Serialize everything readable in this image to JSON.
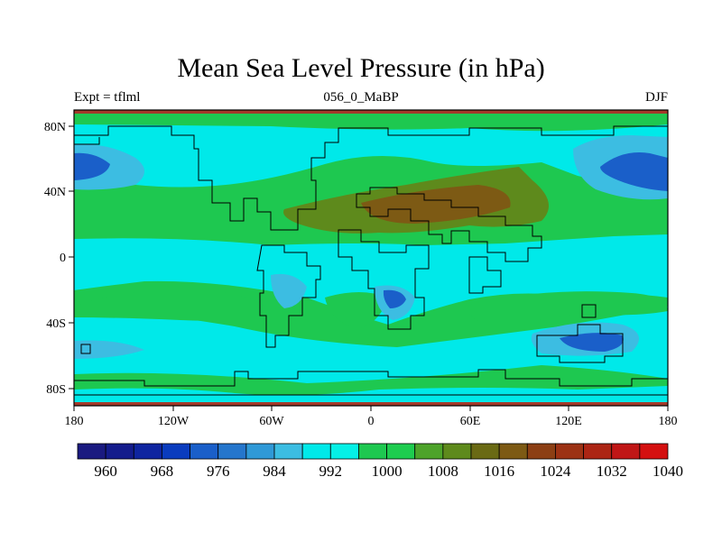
{
  "title": "Mean Sea Level Pressure (in hPa)",
  "subtitle_left": "Expt = tflml",
  "subtitle_center": "056_0_MaBP",
  "subtitle_right": "DJF",
  "x_ticks": [
    "180",
    "120W",
    "60W",
    "0",
    "60E",
    "120E",
    "180"
  ],
  "y_ticks": [
    "80N",
    "40N",
    "0",
    "40S",
    "80S"
  ],
  "colorbar": {
    "colors": [
      "#1a1a80",
      "#141c8c",
      "#0f25a0",
      "#0a3cbe",
      "#1a5fc9",
      "#2576cc",
      "#2f99d7",
      "#3cbde2",
      "#00e9e9",
      "#05f0e6",
      "#1ec850",
      "#1ecc4f",
      "#4da32a",
      "#5e8a1c",
      "#6a6a14",
      "#7d5a14",
      "#8c3f14",
      "#9c3214",
      "#ac2514",
      "#c01616",
      "#d41010"
    ],
    "labels": [
      "960",
      "968",
      "976",
      "984",
      "992",
      "1000",
      "1008",
      "1016",
      "1024",
      "1032",
      "1040"
    ]
  },
  "palette": {
    "lowest": "#1a5fc9",
    "low": "#2f99d7",
    "mid_low": "#00e9e9",
    "mid_high": "#1ec850",
    "high": "#5e8a1c",
    "higher": "#7d5a14",
    "border": "#a33a2a"
  }
}
